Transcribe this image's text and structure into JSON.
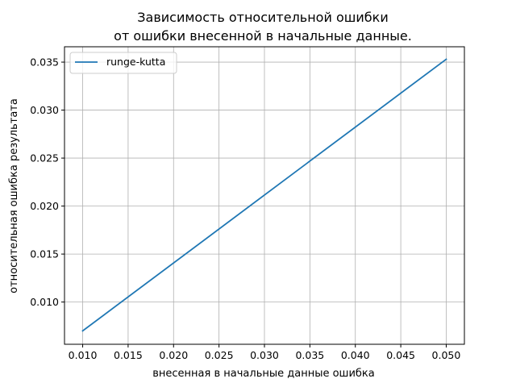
{
  "chart_data": {
    "type": "line",
    "title_line1": "Зависимость относительной ошибки",
    "title_line2": "от ошибки внесенной в начальные данные.",
    "xlabel": "внесенная в начальные данные ошибка",
    "ylabel": "относительная ошибка результата",
    "xlim": [
      0.008,
      0.052
    ],
    "ylim": [
      0.0056,
      0.0366
    ],
    "xticks": [
      0.01,
      0.015,
      0.02,
      0.025,
      0.03,
      0.035,
      0.04,
      0.045,
      0.05
    ],
    "xtick_labels": [
      "0.010",
      "0.015",
      "0.020",
      "0.025",
      "0.030",
      "0.035",
      "0.040",
      "0.045",
      "0.050"
    ],
    "yticks": [
      0.01,
      0.015,
      0.02,
      0.025,
      0.03,
      0.035
    ],
    "ytick_labels": [
      "0.010",
      "0.015",
      "0.020",
      "0.025",
      "0.030",
      "0.035"
    ],
    "grid": true,
    "legend_position": "top-left",
    "series": [
      {
        "name": "runge-kutta",
        "color": "#1f77b4",
        "x": [
          0.01,
          0.05
        ],
        "y": [
          0.007,
          0.0353
        ]
      }
    ]
  }
}
